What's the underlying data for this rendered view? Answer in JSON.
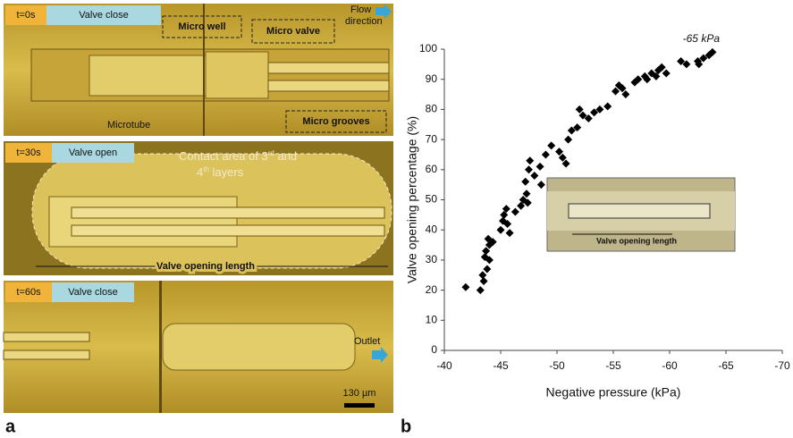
{
  "panel_labels": [
    "a",
    "b"
  ],
  "panel_a": {
    "top": {
      "time": "t=0s",
      "state": "Valve close",
      "micro_well": "Micro well",
      "micro_valve": "Micro valve",
      "flow": [
        "Flow",
        "direction"
      ],
      "microtube": "Microtube",
      "micro_grooves": "Micro grooves"
    },
    "middle": {
      "time": "t=30s",
      "state": "Valve open",
      "contact": [
        "Contact area of 3",
        "rd",
        " and",
        "4",
        "th",
        " layers"
      ],
      "length": "Valve opening length"
    },
    "bottom": {
      "time": "t=60s",
      "state": "Valve close",
      "outlet": "Outlet",
      "scale_bar": "130 µm"
    }
  },
  "chart_data": {
    "type": "scatter",
    "x_label": "Negative pressure (kPa)",
    "y_label": "Valve opening percentage (%)",
    "annotation": "-65 kPa",
    "inset_label": "Valve opening length",
    "color": "#000000",
    "x": [
      -41.9,
      -43.2,
      -43.5,
      -43.4,
      -43.8,
      -43.6,
      -44.0,
      -43.7,
      -44.0,
      -43.9,
      -44.3,
      -45.0,
      -45.2,
      -45.3,
      -45.6,
      -45.8,
      -45.5,
      -46.3,
      -46.8,
      -47.0,
      -47.3,
      -47.4,
      -47.2,
      -47.5,
      -47.6,
      -48.0,
      -48.5,
      -48.6,
      -49.0,
      -49.5,
      -50.2,
      -50.5,
      -50.8,
      -51.0,
      -51.3,
      -51.8,
      -52.0,
      -52.3,
      -52.8,
      -53.3,
      -53.8,
      -54.5,
      -55.2,
      -55.5,
      -55.8,
      -56.1,
      -56.9,
      -57.2,
      -57.8,
      -58.4,
      -58.8,
      -59.0,
      -59.3,
      -59.7,
      -61.0,
      -61.5,
      -62.5,
      -63.0,
      -63.5,
      -63.8,
      -62.6,
      -58.0
    ],
    "values": [
      21,
      20,
      23,
      25,
      27,
      31,
      30,
      33,
      35,
      37,
      36,
      40,
      43,
      45,
      42,
      39,
      47,
      46,
      48,
      50,
      52,
      49,
      56,
      60,
      63,
      58,
      61,
      55,
      65,
      68,
      66,
      64,
      62,
      70,
      73,
      74,
      80,
      78,
      77,
      79,
      80,
      81,
      86,
      88,
      87,
      85,
      89,
      90,
      91,
      92,
      91,
      93,
      94,
      92,
      96,
      95,
      96,
      97,
      98,
      99,
      95,
      90
    ],
    "xlim": [
      -40,
      -70
    ],
    "xticks": [
      -40,
      -45,
      -50,
      -55,
      -60,
      -65,
      -70
    ],
    "ylim": [
      0,
      100
    ],
    "yticks": [
      0,
      10,
      20,
      30,
      40,
      50,
      60,
      70,
      80,
      90,
      100
    ]
  }
}
